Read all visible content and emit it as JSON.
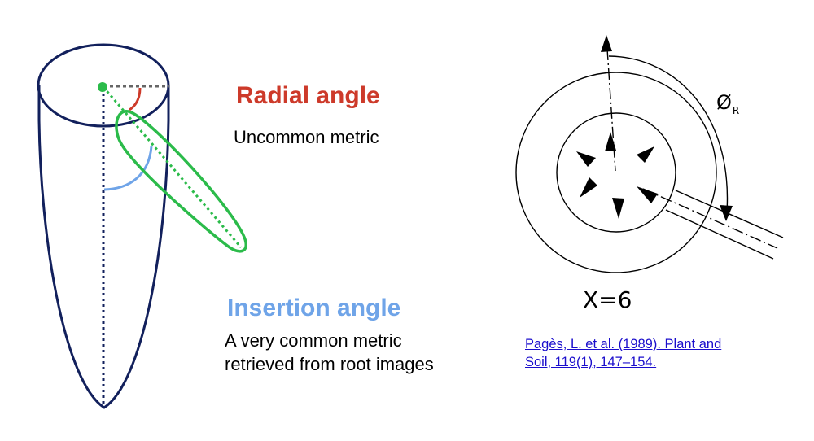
{
  "labels": {
    "radial_title": "Radial angle",
    "radial_desc": "Uncommon metric",
    "insertion_title": "Insertion angle",
    "insertion_desc": "A very common metric retrieved from root images",
    "citation": "Pagès, L. et al.  (1989). Plant and Soil, 119(1), 147–154.",
    "x_label": "X=6",
    "phi_symbol": "Ø",
    "phi_subscript": "R"
  },
  "colors": {
    "navy": "#12205c",
    "radial_red": "#cd3a2a",
    "insertion_blue": "#6fa4e8",
    "root_green": "#2bbb4a",
    "guide_gray": "#666666",
    "link_blue": "#1a0dcc",
    "ink": "#000000"
  }
}
